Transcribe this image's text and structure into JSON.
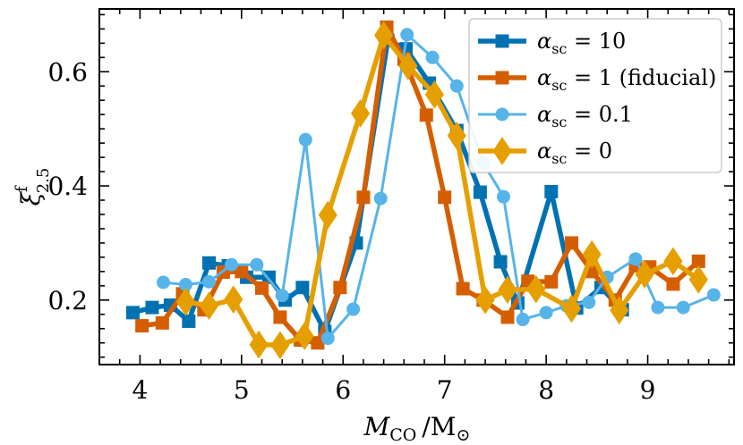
{
  "chart_data": {
    "type": "line",
    "title": "",
    "xlabel": "M_CO / M_sun",
    "xlabel_parts": {
      "main": "M",
      "sub": "CO",
      "sep": "/M",
      "suffix": "⊙"
    },
    "ylabel": "xi^f_2.5",
    "ylabel_parts": {
      "main": "ξ",
      "sup": "f",
      "sub": "2.5"
    },
    "xlim": [
      3.6,
      9.85
    ],
    "ylim": [
      0.087,
      0.71
    ],
    "xticks": [
      4,
      5,
      6,
      7,
      8,
      9
    ],
    "yticks": [
      0.2,
      0.4,
      0.6
    ],
    "ytick_labels": [
      "0.2",
      "0.4",
      "0.6"
    ],
    "legend_position": "top-right",
    "grid": false,
    "series": [
      {
        "name": "αsc = 10",
        "legend": {
          "symbol": "α",
          "sub": "sc",
          "rest": " = 10"
        },
        "color": "#0072b2",
        "marker": "square",
        "width": 5.5,
        "x": [
          3.93,
          4.12,
          4.3,
          4.48,
          4.68,
          4.87,
          5.05,
          5.27,
          5.43,
          5.6,
          5.82,
          6.13,
          6.44,
          6.62,
          6.85,
          7.12,
          7.35,
          7.55,
          7.72,
          8.05,
          8.3,
          8.54,
          8.75
        ],
        "y": [
          0.178,
          0.187,
          0.191,
          0.163,
          0.265,
          0.26,
          0.24,
          0.24,
          0.2,
          0.222,
          0.145,
          0.3,
          0.655,
          0.64,
          0.58,
          0.497,
          0.389,
          0.267,
          0.195,
          0.39,
          0.186,
          0.222,
          0.183
        ]
      },
      {
        "name": "αsc = 1 (fiducial)",
        "legend": {
          "symbol": "α",
          "sub": "sc",
          "rest": " = 1 (fiducial)"
        },
        "color": "#d55e00",
        "marker": "square",
        "width": 5.5,
        "x": [
          4.02,
          4.22,
          4.42,
          4.63,
          4.82,
          5.0,
          5.2,
          5.38,
          5.58,
          5.75,
          5.97,
          6.2,
          6.43,
          6.6,
          6.82,
          7.0,
          7.18,
          7.38,
          7.62,
          7.82,
          8.05,
          8.25,
          8.45,
          8.68,
          8.88,
          9.02,
          9.25,
          9.5
        ],
        "y": [
          0.155,
          0.16,
          0.211,
          0.183,
          0.249,
          0.25,
          0.221,
          0.17,
          0.13,
          0.125,
          0.222,
          0.38,
          0.678,
          0.622,
          0.524,
          0.38,
          0.22,
          0.2,
          0.17,
          0.233,
          0.232,
          0.3,
          0.25,
          0.2,
          0.26,
          0.258,
          0.228,
          0.268
        ]
      },
      {
        "name": "αsc = 0.1",
        "legend": {
          "symbol": "α",
          "sub": "sc",
          "rest": " = 0.1"
        },
        "color": "#56b4e9",
        "marker": "circle",
        "width": 3,
        "x": [
          4.23,
          4.45,
          4.68,
          4.9,
          5.15,
          5.4,
          5.63,
          5.85,
          6.1,
          6.37,
          6.63,
          6.88,
          7.12,
          7.38,
          7.58,
          7.77,
          8.0,
          8.2,
          8.42,
          8.6,
          8.88,
          9.1,
          9.35,
          9.65
        ],
        "y": [
          0.231,
          0.227,
          0.232,
          0.262,
          0.262,
          0.208,
          0.481,
          0.133,
          0.184,
          0.378,
          0.665,
          0.625,
          0.575,
          0.44,
          0.381,
          0.166,
          0.178,
          0.19,
          0.196,
          0.24,
          0.272,
          0.187,
          0.187,
          0.209
        ]
      },
      {
        "name": "αsc = 0",
        "legend": {
          "symbol": "α",
          "sub": "sc",
          "rest": " = 0"
        },
        "color": "#e69f00",
        "marker": "diamond",
        "width": 5.5,
        "x": [
          4.45,
          4.68,
          4.92,
          5.17,
          5.38,
          5.62,
          5.85,
          6.17,
          6.4,
          6.64,
          6.9,
          7.12,
          7.4,
          7.62,
          7.9,
          8.25,
          8.45,
          8.72,
          8.97,
          9.25,
          9.5
        ],
        "y": [
          0.197,
          0.19,
          0.201,
          0.122,
          0.121,
          0.137,
          0.349,
          0.527,
          0.664,
          0.61,
          0.56,
          0.488,
          0.2,
          0.218,
          0.219,
          0.185,
          0.28,
          0.182,
          0.245,
          0.268,
          0.236
        ]
      }
    ]
  }
}
